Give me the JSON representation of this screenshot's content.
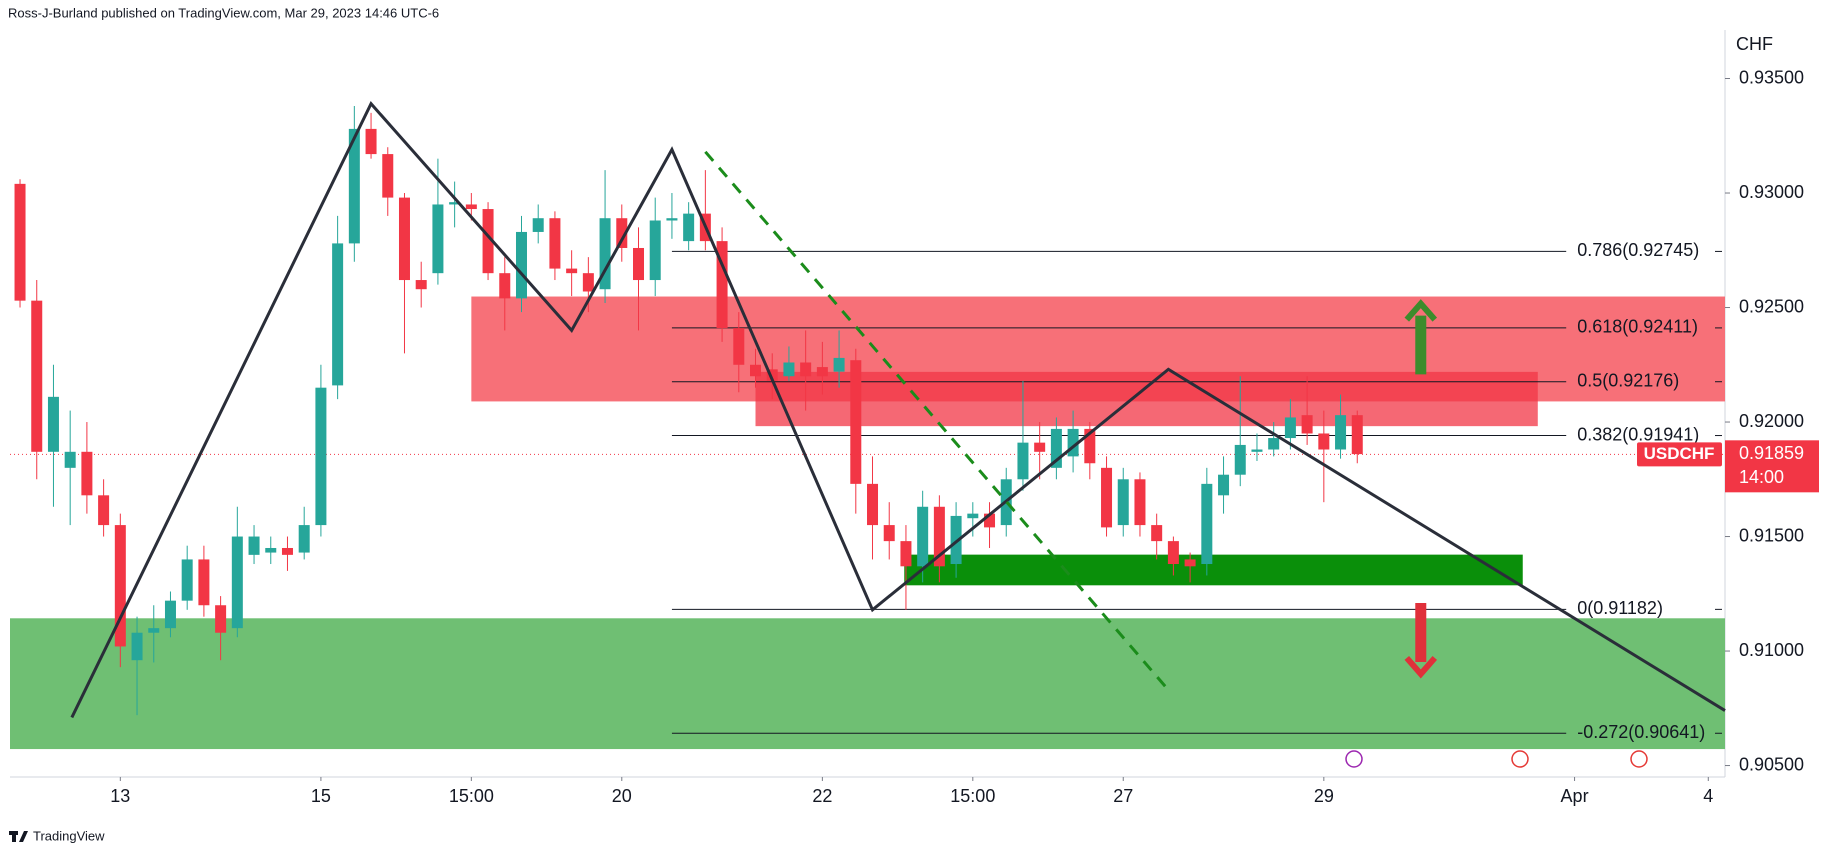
{
  "chart_data": {
    "type": "candlestick",
    "header": "Ross-J-Burland published on TradingView.com, Mar 29, 2023 14:46 UTC-6",
    "footer": "TradingView",
    "y_axis_title": "CHF",
    "up_color": "#26a69a",
    "down_color": "#f23645",
    "xlim": [
      -0.6,
      102
    ],
    "ylim": [
      0.9045,
      0.9369
    ],
    "xticks": [
      {
        "value": 6,
        "label": "13"
      },
      {
        "value": 18,
        "label": "15"
      },
      {
        "value": 27,
        "label": "15:00"
      },
      {
        "value": 36,
        "label": "20"
      },
      {
        "value": 48,
        "label": "22"
      },
      {
        "value": 57,
        "label": "15:00"
      },
      {
        "value": 66,
        "label": "27"
      },
      {
        "value": 78,
        "label": "29"
      },
      {
        "value": 93,
        "label": "Apr"
      },
      {
        "value": 101,
        "label": "4"
      }
    ],
    "yticks": [
      {
        "value": 0.935,
        "label": "0.93500"
      },
      {
        "value": 0.93,
        "label": "0.93000"
      },
      {
        "value": 0.925,
        "label": "0.92500"
      },
      {
        "value": 0.92,
        "label": "0.92000"
      },
      {
        "value": 0.915,
        "label": "0.91500"
      },
      {
        "value": 0.91,
        "label": "0.91000"
      },
      {
        "value": 0.905,
        "label": "0.90500"
      }
    ],
    "open": [
      0.9304,
      0.9253,
      0.9187,
      0.918,
      0.9187,
      0.9168,
      0.9155,
      0.9096,
      0.9108,
      0.911,
      0.9122,
      0.914,
      0.912,
      0.911,
      0.9142,
      0.9143,
      0.9145,
      0.9143,
      0.9155,
      0.9216,
      0.9278,
      0.9328,
      0.9317,
      0.9298,
      0.9262,
      0.9265,
      0.9295,
      0.9295,
      0.9293,
      0.9265,
      0.9254,
      0.9283,
      0.9289,
      0.9267,
      0.9265,
      0.9258,
      0.9289,
      0.9276,
      0.9262,
      0.9288,
      0.9279,
      0.9291,
      0.9279,
      0.9241,
      0.9225,
      0.9223,
      0.922,
      0.9226,
      0.9224,
      0.9222,
      0.9227,
      0.9173,
      0.9155,
      0.9148,
      0.9137,
      0.9163,
      0.9138,
      0.9158,
      0.916,
      0.9155,
      0.9175,
      0.9191,
      0.918,
      0.9185,
      0.9197,
      0.918,
      0.9155,
      0.9175,
      0.9155,
      0.9148,
      0.914,
      0.9138,
      0.9168,
      0.9177,
      0.9187,
      0.9188,
      0.9193,
      0.9203,
      0.9195,
      0.9188,
      0.9203
    ],
    "high": [
      0.9306,
      0.9262,
      0.9225,
      0.9205,
      0.92,
      0.9175,
      0.916,
      0.9115,
      0.912,
      0.9126,
      0.9146,
      0.9146,
      0.9124,
      0.9163,
      0.9155,
      0.915,
      0.915,
      0.9163,
      0.9225,
      0.929,
      0.9338,
      0.9335,
      0.932,
      0.93,
      0.927,
      0.9315,
      0.9305,
      0.93,
      0.9296,
      0.9272,
      0.929,
      0.9295,
      0.9292,
      0.9275,
      0.9272,
      0.931,
      0.9295,
      0.9285,
      0.9298,
      0.93,
      0.9296,
      0.931,
      0.9285,
      0.9248,
      0.9232,
      0.923,
      0.9233,
      0.924,
      0.9235,
      0.924,
      0.9232,
      0.9185,
      0.9165,
      0.9155,
      0.917,
      0.9168,
      0.9165,
      0.9165,
      0.9165,
      0.918,
      0.9218,
      0.92,
      0.9202,
      0.9205,
      0.92,
      0.9185,
      0.918,
      0.9178,
      0.916,
      0.915,
      0.9143,
      0.918,
      0.9185,
      0.922,
      0.9195,
      0.92,
      0.921,
      0.922,
      0.9205,
      0.9212,
      0.9205
    ],
    "low": [
      0.925,
      0.9175,
      0.9163,
      0.9155,
      0.916,
      0.915,
      0.9093,
      0.9072,
      0.9095,
      0.9106,
      0.9118,
      0.9115,
      0.9096,
      0.9106,
      0.9138,
      0.9138,
      0.9135,
      0.914,
      0.915,
      0.921,
      0.927,
      0.9315,
      0.929,
      0.923,
      0.925,
      0.926,
      0.9285,
      0.9288,
      0.9262,
      0.924,
      0.9248,
      0.9278,
      0.9262,
      0.9255,
      0.9248,
      0.9252,
      0.927,
      0.924,
      0.9255,
      0.928,
      0.9275,
      0.9275,
      0.9235,
      0.9213,
      0.9215,
      0.921,
      0.9218,
      0.9205,
      0.9212,
      0.9215,
      0.916,
      0.914,
      0.914,
      0.9118,
      0.913,
      0.913,
      0.9132,
      0.915,
      0.9145,
      0.915,
      0.917,
      0.9175,
      0.9175,
      0.9178,
      0.9175,
      0.915,
      0.915,
      0.915,
      0.914,
      0.9133,
      0.913,
      0.9133,
      0.916,
      0.9172,
      0.9183,
      0.9185,
      0.9188,
      0.919,
      0.9165,
      0.9184,
      0.9182
    ],
    "close": [
      0.9253,
      0.9187,
      0.9211,
      0.9187,
      0.9168,
      0.9155,
      0.9102,
      0.9108,
      0.911,
      0.9122,
      0.914,
      0.912,
      0.9108,
      0.915,
      0.915,
      0.9145,
      0.9142,
      0.9155,
      0.9215,
      0.9278,
      0.9328,
      0.9317,
      0.9298,
      0.9262,
      0.9258,
      0.9295,
      0.9296,
      0.9293,
      0.9265,
      0.9254,
      0.9283,
      0.9289,
      0.9267,
      0.9265,
      0.9257,
      0.9289,
      0.9276,
      0.9262,
      0.9288,
      0.9289,
      0.9291,
      0.9279,
      0.9241,
      0.9225,
      0.922,
      0.9218,
      0.9226,
      0.922,
      0.922,
      0.9228,
      0.9173,
      0.9155,
      0.9148,
      0.9137,
      0.9163,
      0.9137,
      0.9159,
      0.916,
      0.9154,
      0.9175,
      0.9191,
      0.9187,
      0.9197,
      0.9197,
      0.9182,
      0.9154,
      0.9175,
      0.9155,
      0.9148,
      0.9138,
      0.9137,
      0.9173,
      0.9177,
      0.919,
      0.9188,
      0.9193,
      0.9202,
      0.9195,
      0.9188,
      0.9203,
      0.9186
    ],
    "zones": [
      {
        "x": [
          -0.6,
          102
        ],
        "y": [
          0.91143,
          0.90572
        ],
        "color": "#6fbf73"
      },
      {
        "x": [
          27,
          102
        ],
        "y": [
          0.92548,
          0.9209
        ],
        "color": "#f77078"
      },
      {
        "x": [
          44,
          90.8
        ],
        "y": [
          0.92219,
          0.91982
        ],
        "color": "#f23645"
      },
      {
        "x": [
          52.9,
          89.9
        ],
        "y": [
          0.91421,
          0.91287
        ],
        "color": "#0a8f0a"
      }
    ],
    "fib": {
      "start": 39,
      "end": 92.5,
      "levels": [
        {
          "label": "0.786(0.92745)",
          "value": 0.92745
        },
        {
          "label": "0.618(0.92411)",
          "value": 0.92411
        },
        {
          "label": "0.5(0.92176)",
          "value": 0.92176
        },
        {
          "label": "0.382(0.91941)",
          "value": 0.91941
        },
        {
          "label": "0(0.91182)",
          "value": 0.91182
        },
        {
          "label": "-0.272(0.90641)",
          "value": 0.90641
        }
      ]
    },
    "lines": [
      {
        "x": [
          3.1,
          21,
          33,
          39,
          51,
          68.7,
          102
        ],
        "y": [
          0.9071,
          0.9339,
          0.924,
          0.9319,
          0.9118,
          0.9223,
          0.9074
        ],
        "color": "#2a2e39",
        "dashed": false
      },
      {
        "x": [
          41,
          68.7
        ],
        "y": [
          0.9318,
          0.9083
        ],
        "color": "#1b8c1b",
        "dashed": true
      }
    ],
    "arrows": [
      {
        "x": 83.8,
        "from": 0.92208,
        "to": 0.92517,
        "color": "#3c8c2c"
      },
      {
        "x": 83.8,
        "from": 0.9121,
        "to": 0.909,
        "color": "#e0303a"
      }
    ],
    "last_price": {
      "symbol": "USDCHF",
      "value": 0.91859,
      "countdown": "14:00",
      "color": "#f23645"
    }
  }
}
